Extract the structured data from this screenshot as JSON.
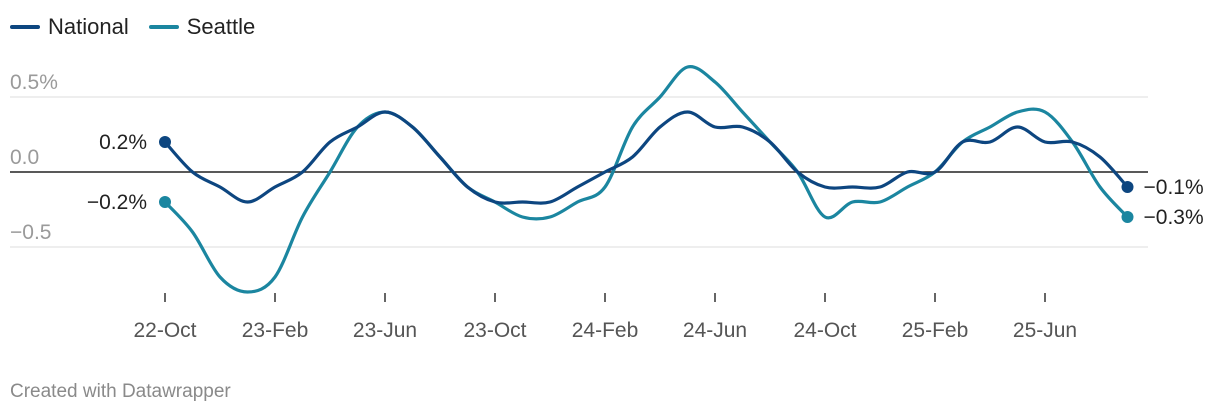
{
  "legend": [
    {
      "name": "National",
      "color": "#0d4680"
    },
    {
      "name": "Seattle",
      "color": "#1b86a0"
    }
  ],
  "footer": "Created with Datawrapper",
  "chart_data": {
    "type": "line",
    "x": [
      "2022-10",
      "2022-11",
      "2022-12",
      "2023-01",
      "2023-02",
      "2023-03",
      "2023-04",
      "2023-05",
      "2023-06",
      "2023-07",
      "2023-08",
      "2023-09",
      "2023-10",
      "2023-11",
      "2023-12",
      "2024-01",
      "2024-02",
      "2024-03",
      "2024-04",
      "2024-05",
      "2024-06",
      "2024-07",
      "2024-08",
      "2024-09",
      "2024-10",
      "2024-11",
      "2024-12",
      "2025-01",
      "2025-02",
      "2025-03",
      "2025-04",
      "2025-05",
      "2025-06",
      "2025-07",
      "2025-08",
      "2025-09"
    ],
    "series": [
      {
        "name": "National",
        "color": "#0d4680",
        "values": [
          0.2,
          0.0,
          -0.1,
          -0.2,
          -0.1,
          0.0,
          0.2,
          0.3,
          0.4,
          0.3,
          0.1,
          -0.1,
          -0.2,
          -0.2,
          -0.2,
          -0.1,
          0.0,
          0.1,
          0.3,
          0.4,
          0.3,
          0.3,
          0.2,
          0.0,
          -0.1,
          -0.1,
          -0.1,
          0.0,
          0.0,
          0.2,
          0.2,
          0.3,
          0.2,
          0.2,
          0.1,
          -0.1
        ],
        "end_label": "−0.1%"
      },
      {
        "name": "Seattle",
        "color": "#1b86a0",
        "values": [
          -0.2,
          -0.4,
          -0.7,
          -0.8,
          -0.7,
          -0.3,
          0.0,
          0.3,
          0.4,
          0.3,
          0.1,
          -0.1,
          -0.2,
          -0.3,
          -0.3,
          -0.2,
          -0.1,
          0.3,
          0.5,
          0.7,
          0.6,
          0.4,
          0.2,
          0.0,
          -0.3,
          -0.2,
          -0.2,
          -0.1,
          0.0,
          0.2,
          0.3,
          0.4,
          0.4,
          0.2,
          -0.1,
          -0.3
        ],
        "end_label": "−0.3%"
      }
    ],
    "start_labels": [
      "0.2%",
      "−0.2%"
    ],
    "y_ticks": [
      {
        "value": 0.5,
        "label": "0.5%"
      },
      {
        "value": 0.0,
        "label": "0.0"
      },
      {
        "value": -0.5,
        "label": "−0.5"
      }
    ],
    "x_ticks": [
      {
        "index": 0,
        "label": "22-Oct"
      },
      {
        "index": 4,
        "label": "23-Feb"
      },
      {
        "index": 8,
        "label": "23-Jun"
      },
      {
        "index": 12,
        "label": "23-Oct"
      },
      {
        "index": 16,
        "label": "24-Feb"
      },
      {
        "index": 20,
        "label": "24-Jun"
      },
      {
        "index": 24,
        "label": "24-Oct"
      },
      {
        "index": 28,
        "label": "25-Feb"
      },
      {
        "index": 32,
        "label": "25-Jun"
      }
    ],
    "ylim": [
      -0.85,
      0.75
    ],
    "zero_line": true,
    "grid": true,
    "legend_position": "top-left"
  }
}
